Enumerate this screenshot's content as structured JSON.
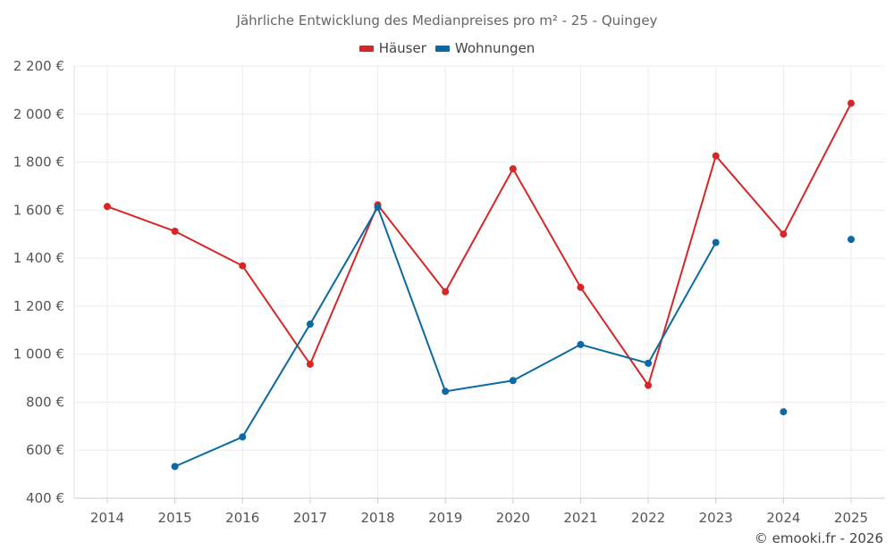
{
  "chart_data": {
    "type": "line",
    "title": "Jährliche Entwicklung des Medianpreises pro m² - 25 - Quingey",
    "xlabel": "",
    "ylabel": "",
    "x": [
      2014,
      2015,
      2016,
      2017,
      2018,
      2019,
      2020,
      2021,
      2022,
      2023,
      2024,
      2025
    ],
    "ylim": [
      400,
      2200
    ],
    "yticks": [
      400,
      600,
      800,
      1000,
      1200,
      1400,
      1600,
      1800,
      2000,
      2200
    ],
    "ytick_labels": [
      "400 €",
      "600 €",
      "800 €",
      "1 000 €",
      "1 200 €",
      "1 400 €",
      "1 600 €",
      "1 800 €",
      "2 000 €",
      "2 200 €"
    ],
    "grid": true,
    "legend_position": "top-center",
    "series": [
      {
        "name": "Häuser",
        "color": "#d62728",
        "values": [
          1615,
          1512,
          1368,
          958,
          1622,
          1260,
          1772,
          1278,
          870,
          1826,
          1500,
          2045
        ]
      },
      {
        "name": "Wohnungen",
        "color": "#0a6aa1",
        "values": [
          null,
          532,
          655,
          1125,
          1612,
          845,
          890,
          1040,
          962,
          1465,
          null,
          1478
        ]
      }
    ],
    "extra_points": [
      {
        "series": "Wohnungen",
        "x": 2024,
        "y": 760
      }
    ]
  },
  "credit": "© emooki.fr - 2026"
}
